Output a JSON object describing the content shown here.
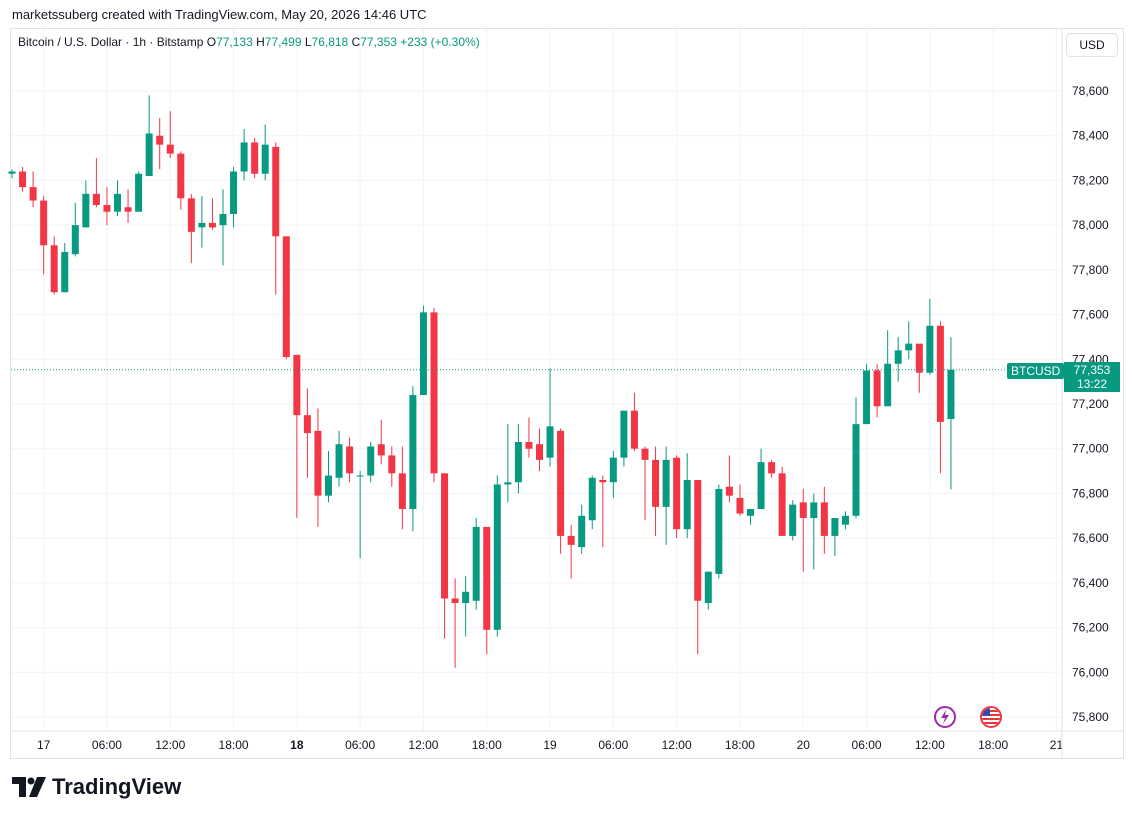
{
  "header": {
    "created_line": "marketssuberg created with TradingView.com, May 20, 2026 14:46 UTC"
  },
  "legend": {
    "symbol": "Bitcoin / U.S. Dollar · 1h · Bitstamp",
    "o_label": "O",
    "o_value": "77,133",
    "h_label": "H",
    "h_value": "77,499",
    "l_label": "L",
    "l_value": "76,818",
    "c_label": "C",
    "c_value": "77,353",
    "change": "+233 (+0.30%)"
  },
  "currency": "USD",
  "price_tag": {
    "symbol": "BTCUSD",
    "price": "77,353",
    "countdown": "13:22"
  },
  "icons": {
    "event_1": "lightning-event-icon",
    "event_2": "us-flag-event-icon"
  },
  "brand": {
    "name": "TradingView",
    "logo": "tradingview-logo-icon"
  },
  "colors": {
    "up": "#089981",
    "down": "#f23645",
    "grid": "#f0f3fa",
    "axis_text": "#131722"
  },
  "chart_data": {
    "type": "candlestick",
    "title": "Bitcoin / U.S. Dollar · 1h · Bitstamp",
    "ylim": [
      75700,
      78850
    ],
    "y_ticks": [
      75800,
      76000,
      76200,
      76400,
      76600,
      76800,
      77000,
      77200,
      77400,
      77600,
      77800,
      78000,
      78200,
      78400,
      78600
    ],
    "y_tick_labels": [
      "75,800",
      "76,000",
      "76,200",
      "76,400",
      "76,600",
      "76,800",
      "77,000",
      "77,200",
      "77,400",
      "77,600",
      "77,800",
      "78,000",
      "78,200",
      "78,400",
      "78,600"
    ],
    "x_ticks": [
      {
        "label": "17",
        "bar": 3,
        "bold": false
      },
      {
        "label": "06:00",
        "bar": 9,
        "bold": false
      },
      {
        "label": "12:00",
        "bar": 15,
        "bold": false
      },
      {
        "label": "18:00",
        "bar": 21,
        "bold": false
      },
      {
        "label": "18",
        "bar": 27,
        "bold": true
      },
      {
        "label": "06:00",
        "bar": 33,
        "bold": false
      },
      {
        "label": "12:00",
        "bar": 39,
        "bold": false
      },
      {
        "label": "18:00",
        "bar": 45,
        "bold": false
      },
      {
        "label": "19",
        "bar": 51,
        "bold": false
      },
      {
        "label": "06:00",
        "bar": 57,
        "bold": false
      },
      {
        "label": "12:00",
        "bar": 63,
        "bold": false
      },
      {
        "label": "18:00",
        "bar": 69,
        "bold": false
      },
      {
        "label": "20",
        "bar": 75,
        "bold": false
      },
      {
        "label": "06:00",
        "bar": 81,
        "bold": false
      },
      {
        "label": "12:00",
        "bar": 87,
        "bold": false
      },
      {
        "label": "18:00",
        "bar": 93,
        "bold": false
      },
      {
        "label": "21",
        "bar": 99,
        "bold": false
      }
    ],
    "last_price": 77353,
    "candles": [
      {
        "o": 78230,
        "h": 78250,
        "l": 78210,
        "c": 78240
      },
      {
        "o": 78240,
        "h": 78260,
        "l": 78150,
        "c": 78170
      },
      {
        "o": 78170,
        "h": 78240,
        "l": 78080,
        "c": 78110
      },
      {
        "o": 78110,
        "h": 78130,
        "l": 77780,
        "c": 77910
      },
      {
        "o": 77910,
        "h": 77950,
        "l": 77690,
        "c": 77700
      },
      {
        "o": 77700,
        "h": 77920,
        "l": 77700,
        "c": 77880
      },
      {
        "o": 77870,
        "h": 78100,
        "l": 77860,
        "c": 78000
      },
      {
        "o": 77990,
        "h": 78200,
        "l": 77990,
        "c": 78140
      },
      {
        "o": 78140,
        "h": 78300,
        "l": 78080,
        "c": 78090
      },
      {
        "o": 78090,
        "h": 78170,
        "l": 78000,
        "c": 78060
      },
      {
        "o": 78060,
        "h": 78200,
        "l": 78040,
        "c": 78140
      },
      {
        "o": 78080,
        "h": 78160,
        "l": 78010,
        "c": 78060
      },
      {
        "o": 78060,
        "h": 78240,
        "l": 78060,
        "c": 78230
      },
      {
        "o": 78220,
        "h": 78580,
        "l": 78220,
        "c": 78410
      },
      {
        "o": 78400,
        "h": 78480,
        "l": 78250,
        "c": 78360
      },
      {
        "o": 78360,
        "h": 78510,
        "l": 78300,
        "c": 78320
      },
      {
        "o": 78320,
        "h": 78330,
        "l": 78070,
        "c": 78120
      },
      {
        "o": 78120,
        "h": 78140,
        "l": 77830,
        "c": 77970
      },
      {
        "o": 77990,
        "h": 78130,
        "l": 77900,
        "c": 78010
      },
      {
        "o": 78010,
        "h": 78120,
        "l": 77980,
        "c": 77990
      },
      {
        "o": 78000,
        "h": 78160,
        "l": 77820,
        "c": 78050
      },
      {
        "o": 78050,
        "h": 78260,
        "l": 77990,
        "c": 78240
      },
      {
        "o": 78240,
        "h": 78430,
        "l": 78200,
        "c": 78370
      },
      {
        "o": 78370,
        "h": 78390,
        "l": 78210,
        "c": 78230
      },
      {
        "o": 78230,
        "h": 78450,
        "l": 78200,
        "c": 78360
      },
      {
        "o": 78350,
        "h": 78370,
        "l": 77690,
        "c": 77950
      },
      {
        "o": 77950,
        "h": 77950,
        "l": 77400,
        "c": 77410
      },
      {
        "o": 77420,
        "h": 77420,
        "l": 76690,
        "c": 77150
      },
      {
        "o": 77150,
        "h": 77270,
        "l": 76870,
        "c": 77070
      },
      {
        "o": 77080,
        "h": 77180,
        "l": 76650,
        "c": 76790
      },
      {
        "o": 76790,
        "h": 76990,
        "l": 76760,
        "c": 76880
      },
      {
        "o": 76870,
        "h": 77080,
        "l": 76830,
        "c": 77020
      },
      {
        "o": 77010,
        "h": 77050,
        "l": 76850,
        "c": 76890
      },
      {
        "o": 76880,
        "h": 76900,
        "l": 76510,
        "c": 76880
      },
      {
        "o": 76880,
        "h": 77030,
        "l": 76850,
        "c": 77010
      },
      {
        "o": 77020,
        "h": 77130,
        "l": 76930,
        "c": 76970
      },
      {
        "o": 76970,
        "h": 77010,
        "l": 76830,
        "c": 76890
      },
      {
        "o": 76890,
        "h": 77010,
        "l": 76640,
        "c": 76730
      },
      {
        "o": 76730,
        "h": 77280,
        "l": 76630,
        "c": 77240
      },
      {
        "o": 77240,
        "h": 77640,
        "l": 77240,
        "c": 77610
      },
      {
        "o": 77610,
        "h": 77630,
        "l": 76850,
        "c": 76890
      },
      {
        "o": 76890,
        "h": 76890,
        "l": 76150,
        "c": 76330
      },
      {
        "o": 76330,
        "h": 76420,
        "l": 76020,
        "c": 76310
      },
      {
        "o": 76310,
        "h": 76430,
        "l": 76160,
        "c": 76360
      },
      {
        "o": 76320,
        "h": 76690,
        "l": 76280,
        "c": 76650
      },
      {
        "o": 76650,
        "h": 76650,
        "l": 76080,
        "c": 76190
      },
      {
        "o": 76190,
        "h": 76880,
        "l": 76160,
        "c": 76840
      },
      {
        "o": 76840,
        "h": 77110,
        "l": 76760,
        "c": 76850
      },
      {
        "o": 76850,
        "h": 77110,
        "l": 76800,
        "c": 77030
      },
      {
        "o": 77030,
        "h": 77140,
        "l": 76960,
        "c": 77000
      },
      {
        "o": 77020,
        "h": 77090,
        "l": 76900,
        "c": 76950
      },
      {
        "o": 76960,
        "h": 77360,
        "l": 76920,
        "c": 77100
      },
      {
        "o": 77080,
        "h": 77090,
        "l": 76530,
        "c": 76610
      },
      {
        "o": 76610,
        "h": 76660,
        "l": 76420,
        "c": 76570
      },
      {
        "o": 76560,
        "h": 76750,
        "l": 76530,
        "c": 76700
      },
      {
        "o": 76680,
        "h": 76880,
        "l": 76640,
        "c": 76870
      },
      {
        "o": 76860,
        "h": 76880,
        "l": 76560,
        "c": 76850
      },
      {
        "o": 76850,
        "h": 76990,
        "l": 76780,
        "c": 76960
      },
      {
        "o": 76960,
        "h": 77140,
        "l": 76920,
        "c": 77170
      },
      {
        "o": 77170,
        "h": 77250,
        "l": 76990,
        "c": 77000
      },
      {
        "o": 77000,
        "h": 77010,
        "l": 76680,
        "c": 76950
      },
      {
        "o": 76950,
        "h": 77010,
        "l": 76610,
        "c": 76740
      },
      {
        "o": 76740,
        "h": 77010,
        "l": 76570,
        "c": 76950
      },
      {
        "o": 76960,
        "h": 76970,
        "l": 76600,
        "c": 76640
      },
      {
        "o": 76640,
        "h": 76980,
        "l": 76600,
        "c": 76860
      },
      {
        "o": 76860,
        "h": 76860,
        "l": 76080,
        "c": 76320
      },
      {
        "o": 76310,
        "h": 76450,
        "l": 76280,
        "c": 76450
      },
      {
        "o": 76440,
        "h": 76840,
        "l": 76420,
        "c": 76820
      },
      {
        "o": 76830,
        "h": 76970,
        "l": 76760,
        "c": 76790
      },
      {
        "o": 76780,
        "h": 76840,
        "l": 76700,
        "c": 76710
      },
      {
        "o": 76700,
        "h": 76730,
        "l": 76660,
        "c": 76730
      },
      {
        "o": 76730,
        "h": 77000,
        "l": 76750,
        "c": 76940
      },
      {
        "o": 76940,
        "h": 76950,
        "l": 76870,
        "c": 76890
      },
      {
        "o": 76890,
        "h": 76920,
        "l": 76610,
        "c": 76610
      },
      {
        "o": 76610,
        "h": 76770,
        "l": 76590,
        "c": 76750
      },
      {
        "o": 76760,
        "h": 76820,
        "l": 76450,
        "c": 76690
      },
      {
        "o": 76690,
        "h": 76800,
        "l": 76460,
        "c": 76760
      },
      {
        "o": 76760,
        "h": 76830,
        "l": 76530,
        "c": 76610
      },
      {
        "o": 76610,
        "h": 76680,
        "l": 76520,
        "c": 76690
      },
      {
        "o": 76660,
        "h": 76720,
        "l": 76640,
        "c": 76700
      },
      {
        "o": 76700,
        "h": 77230,
        "l": 76690,
        "c": 77110
      },
      {
        "o": 77110,
        "h": 77380,
        "l": 77120,
        "c": 77350
      },
      {
        "o": 77350,
        "h": 77380,
        "l": 77140,
        "c": 77190
      },
      {
        "o": 77190,
        "h": 77530,
        "l": 77190,
        "c": 77380
      },
      {
        "o": 77380,
        "h": 77500,
        "l": 77300,
        "c": 77440
      },
      {
        "o": 77440,
        "h": 77570,
        "l": 77400,
        "c": 77470
      },
      {
        "o": 77470,
        "h": 77460,
        "l": 77250,
        "c": 77340
      },
      {
        "o": 77340,
        "h": 77670,
        "l": 77330,
        "c": 77550
      },
      {
        "o": 77550,
        "h": 77570,
        "l": 76890,
        "c": 77120
      },
      {
        "o": 77133,
        "h": 77499,
        "l": 76818,
        "c": 77353
      }
    ]
  }
}
